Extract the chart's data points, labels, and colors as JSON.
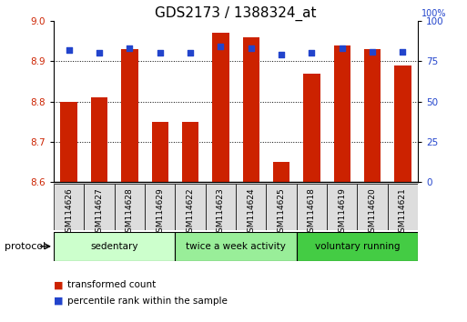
{
  "title": "GDS2173 / 1388324_at",
  "samples": [
    "GSM114626",
    "GSM114627",
    "GSM114628",
    "GSM114629",
    "GSM114622",
    "GSM114623",
    "GSM114624",
    "GSM114625",
    "GSM114618",
    "GSM114619",
    "GSM114620",
    "GSM114621"
  ],
  "transformed_count": [
    8.8,
    8.81,
    8.93,
    8.75,
    8.75,
    8.97,
    8.96,
    8.65,
    8.87,
    8.94,
    8.93,
    8.89
  ],
  "percentile_rank": [
    82,
    80,
    83,
    80,
    80,
    84,
    83,
    79,
    80,
    83,
    81,
    81
  ],
  "ylim_left": [
    8.6,
    9.0
  ],
  "ylim_right": [
    0,
    100
  ],
  "yticks_left": [
    8.6,
    8.7,
    8.8,
    8.9,
    9.0
  ],
  "yticks_right": [
    0,
    25,
    50,
    75,
    100
  ],
  "groups": [
    {
      "label": "sedentary",
      "indices": [
        0,
        1,
        2,
        3
      ],
      "color": "#ccffcc"
    },
    {
      "label": "twice a week activity",
      "indices": [
        4,
        5,
        6,
        7
      ],
      "color": "#99ee99"
    },
    {
      "label": "voluntary running",
      "indices": [
        8,
        9,
        10,
        11
      ],
      "color": "#44cc44"
    }
  ],
  "bar_color": "#cc2200",
  "dot_color": "#2244cc",
  "bar_bottom": 8.6,
  "legend_items": [
    {
      "label": "transformed count",
      "color": "#cc2200"
    },
    {
      "label": "percentile rank within the sample",
      "color": "#2244cc"
    }
  ],
  "protocol_label": "protocol",
  "title_fontsize": 11,
  "tick_fontsize": 7.5,
  "cell_bg": "#dddddd"
}
